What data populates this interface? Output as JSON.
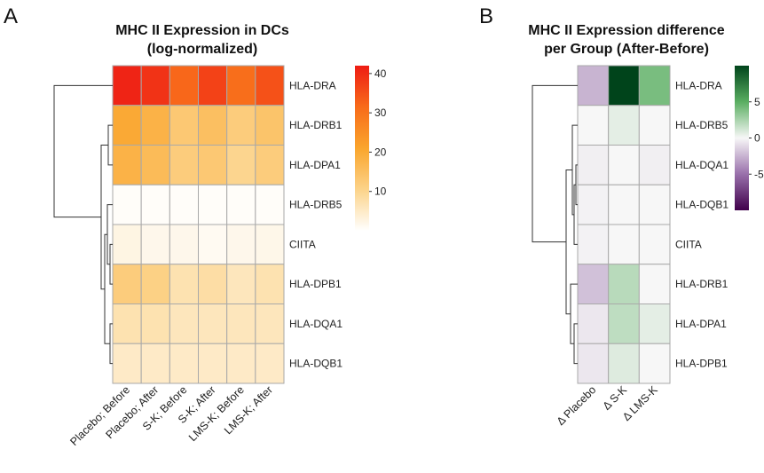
{
  "chart_data": [
    {
      "type": "heatmap",
      "panel": "A",
      "title": [
        "MHC II Expression in DCs",
        "(log-normalized)"
      ],
      "rows": [
        "HLA-DRA",
        "HLA-DRB1",
        "HLA-DPA1",
        "HLA-DRB5",
        "CIITA",
        "HLA-DPB1",
        "HLA-DQA1",
        "HLA-DQB1"
      ],
      "columns": [
        "Placebo; Before",
        "Placebo; After",
        "S-K; Before",
        "S-K; After",
        "LMS-K; Before",
        "LMS-K; After"
      ],
      "values": [
        [
          41,
          39,
          32,
          37,
          31,
          35
        ],
        [
          20,
          18,
          13,
          15,
          12,
          14
        ],
        [
          18,
          16,
          12,
          13,
          10,
          12
        ],
        [
          0.5,
          0.5,
          0.5,
          0.5,
          0.5,
          0.5
        ],
        [
          2.5,
          1.8,
          1.8,
          1.2,
          1.8,
          2
        ],
        [
          12,
          11,
          7,
          8,
          6,
          7
        ],
        [
          7,
          7,
          6,
          6,
          6,
          6
        ],
        [
          5,
          5,
          5,
          5,
          5,
          5
        ]
      ],
      "colorbar": {
        "ticks": [
          10,
          20,
          30,
          40
        ],
        "range": [
          0,
          42
        ],
        "colors": [
          "#ffffff",
          "#fcd389",
          "#faa52c",
          "#f86b1a",
          "#ee1c14"
        ]
      },
      "dendrogram": "row"
    },
    {
      "type": "heatmap",
      "panel": "B",
      "title": [
        "MHC II Expression difference",
        "per Group (After-Before)"
      ],
      "rows": [
        "HLA-DRA",
        "HLA-DRB5",
        "HLA-DQA1",
        "HLA-DQB1",
        "CIITA",
        "HLA-DRB1",
        "HLA-DPA1",
        "HLA-DPB1"
      ],
      "columns": [
        "Δ Placebo",
        "Δ S-K",
        "Δ LMS-K"
      ],
      "values": [
        [
          -2.5,
          10,
          4
        ],
        [
          0,
          0.6,
          0
        ],
        [
          -0.3,
          0,
          -0.3
        ],
        [
          -0.2,
          0,
          0
        ],
        [
          -0.2,
          0,
          0
        ],
        [
          -2,
          2,
          0
        ],
        [
          -0.6,
          1.8,
          0.6
        ],
        [
          -0.6,
          0.8,
          0
        ]
      ],
      "colorbar": {
        "ticks": [
          5,
          0,
          -5
        ],
        "range": [
          -10,
          10
        ],
        "colors": [
          "#40004b",
          "#9970ab",
          "#f7f7f7",
          "#5aae61",
          "#00441b"
        ]
      },
      "dendrogram": "row"
    }
  ],
  "panel_labels": [
    "A",
    "B"
  ]
}
